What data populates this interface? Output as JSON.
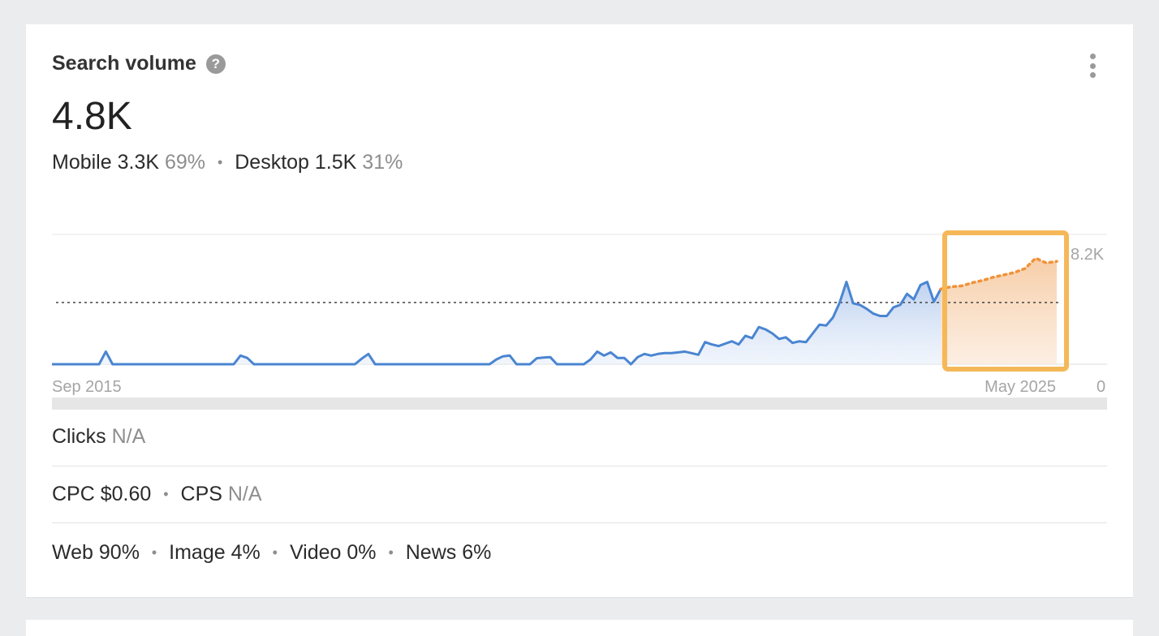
{
  "card": {
    "title": "Search volume",
    "help_icon": "question-circle-icon",
    "menu_icon": "kebab-menu-icon",
    "volume": "4.8K",
    "split": {
      "mobile_label": "Mobile 3.3K",
      "mobile_pct": "69%",
      "desktop_label": "Desktop 1.5K",
      "desktop_pct": "31%"
    },
    "clicks": {
      "label": "Clicks",
      "value": "N/A"
    },
    "cpc": {
      "label": "CPC $0.60",
      "cps_label": "CPS",
      "cps_value": "N/A"
    },
    "distribution": {
      "web": "Web 90%",
      "image": "Image 4%",
      "video": "Video 0%",
      "news": "News 6%"
    }
  },
  "chart_data": {
    "type": "area",
    "x_start_label": "Sep 2015",
    "x_end_label": "May 2025",
    "y_max_label": "8.2K",
    "y_min_label": "0",
    "ylim": [
      0,
      8200
    ],
    "average_line": 3900,
    "colors": {
      "history": "#4a85d1",
      "forecast": "#f0923a",
      "highlight": "#f5b858"
    },
    "series": [
      {
        "values": [
          0,
          0,
          0,
          0,
          0,
          0,
          0,
          0,
          0,
          0,
          0,
          0,
          0,
          0,
          0,
          0,
          0,
          0,
          0,
          0,
          0,
          0,
          0,
          0,
          0,
          0,
          0,
          0,
          0,
          0,
          0,
          0,
          0,
          0,
          0,
          0,
          0,
          0,
          0,
          0,
          0,
          0,
          0,
          0,
          0,
          0,
          0,
          0,
          0,
          0,
          0,
          0,
          0,
          0,
          0,
          0,
          0,
          0,
          0,
          0,
          0,
          0,
          0,
          0,
          0,
          0,
          0,
          0,
          0,
          0,
          0,
          0,
          0,
          0,
          0,
          0,
          0,
          0,
          0,
          0,
          0,
          0,
          0,
          0,
          0,
          0,
          0,
          0,
          0,
          0,
          0,
          0,
          0,
          0,
          0,
          0,
          0,
          0,
          0,
          0,
          0,
          0,
          0,
          0,
          0,
          0,
          0,
          0,
          0,
          0,
          0,
          0,
          0,
          0,
          0,
          0,
          0,
          0
        ],
        "points": [
          0,
          0,
          0,
          0,
          0,
          0,
          0,
          0,
          800,
          0,
          0,
          0,
          0,
          0,
          0,
          0,
          0,
          0,
          0,
          0,
          0,
          0,
          0,
          0,
          0,
          0,
          0,
          0,
          0,
          0,
          0,
          0,
          0,
          0,
          550,
          400,
          0,
          0,
          0,
          0,
          0,
          0,
          0,
          0,
          0,
          0,
          0,
          0,
          0,
          0,
          0,
          0,
          0,
          0,
          0,
          0,
          0,
          0,
          0,
          0,
          0,
          0,
          0,
          0,
          0,
          0,
          0,
          0,
          0,
          0,
          0,
          0,
          0,
          0,
          0,
          0,
          0,
          0,
          0,
          0,
          0,
          0,
          0,
          0,
          0,
          0,
          0,
          0,
          0,
          0,
          0,
          0,
          0,
          0,
          0,
          0,
          0,
          0,
          0,
          0,
          0,
          0,
          0,
          0,
          0,
          0,
          0,
          0,
          0,
          0,
          0,
          0,
          0,
          0,
          0,
          0,
          0,
          0
        ]
      }
    ],
    "history": [
      0,
      0,
      0,
      0,
      0,
      0,
      0,
      0,
      800,
      0,
      0,
      0,
      0,
      0,
      0,
      0,
      0,
      0,
      0,
      0,
      0,
      0,
      0,
      0,
      0,
      0,
      0,
      0,
      550,
      400,
      0,
      0,
      0,
      0,
      0,
      0,
      0,
      0,
      0,
      0,
      0,
      0,
      0,
      0,
      0,
      0,
      350,
      650,
      0,
      0,
      0,
      0,
      0,
      0,
      0,
      0,
      0,
      0,
      0,
      0,
      0,
      0,
      0,
      0,
      0,
      0,
      300,
      500,
      550,
      0,
      0,
      0,
      380,
      420,
      450,
      0,
      0,
      0,
      0,
      0,
      300,
      800,
      550,
      750,
      400,
      400,
      0,
      450,
      650,
      550,
      650,
      700,
      700,
      750,
      800,
      700,
      600,
      1400,
      1250,
      1150,
      1300,
      1450,
      1250,
      1800,
      1650,
      2350,
      2200,
      1950,
      1600,
      1700,
      1350,
      1450,
      1400,
      1950,
      2500,
      2450,
      2950,
      3900,
      5200,
      3850,
      3750,
      3500,
      3200,
      3050,
      3050,
      3600,
      3750,
      4450,
      4100,
      5000,
      5200,
      3950,
      4750
    ],
    "forecast": [
      4750,
      4900,
      4950,
      5150,
      5300,
      5500,
      5650,
      5800,
      6050,
      6700,
      6400,
      6500
    ]
  }
}
